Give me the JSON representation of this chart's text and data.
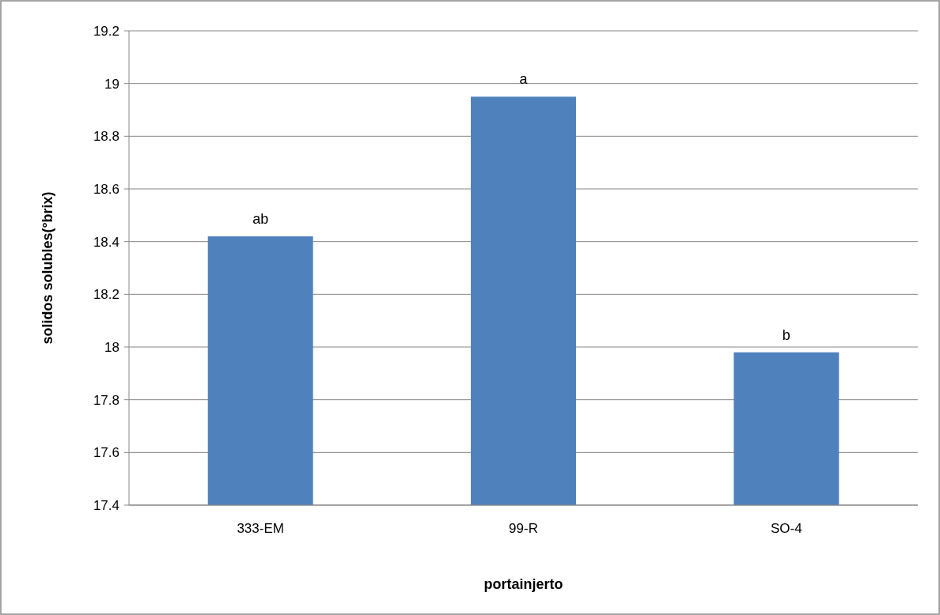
{
  "chart_data": {
    "type": "bar",
    "xlabel": "portainjerto",
    "ylabel": "solidos solubles(°brix)",
    "categories": [
      "333-EM",
      "99-R",
      "SO-4"
    ],
    "values": [
      18.42,
      18.95,
      17.98
    ],
    "color": "#4f81bd",
    "ylim": [
      17.4,
      19.2
    ],
    "yticks": [
      17.4,
      17.6,
      17.8,
      18,
      18.2,
      18.4,
      18.6,
      18.8,
      19,
      19.2
    ],
    "grid": "y",
    "annotations": [
      {
        "text": "ab",
        "x": "333-EM",
        "y": 18.42
      },
      {
        "text": "a",
        "x": "99-R",
        "y": 18.95
      },
      {
        "text": "b",
        "x": "SO-4",
        "y": 17.98
      }
    ]
  }
}
